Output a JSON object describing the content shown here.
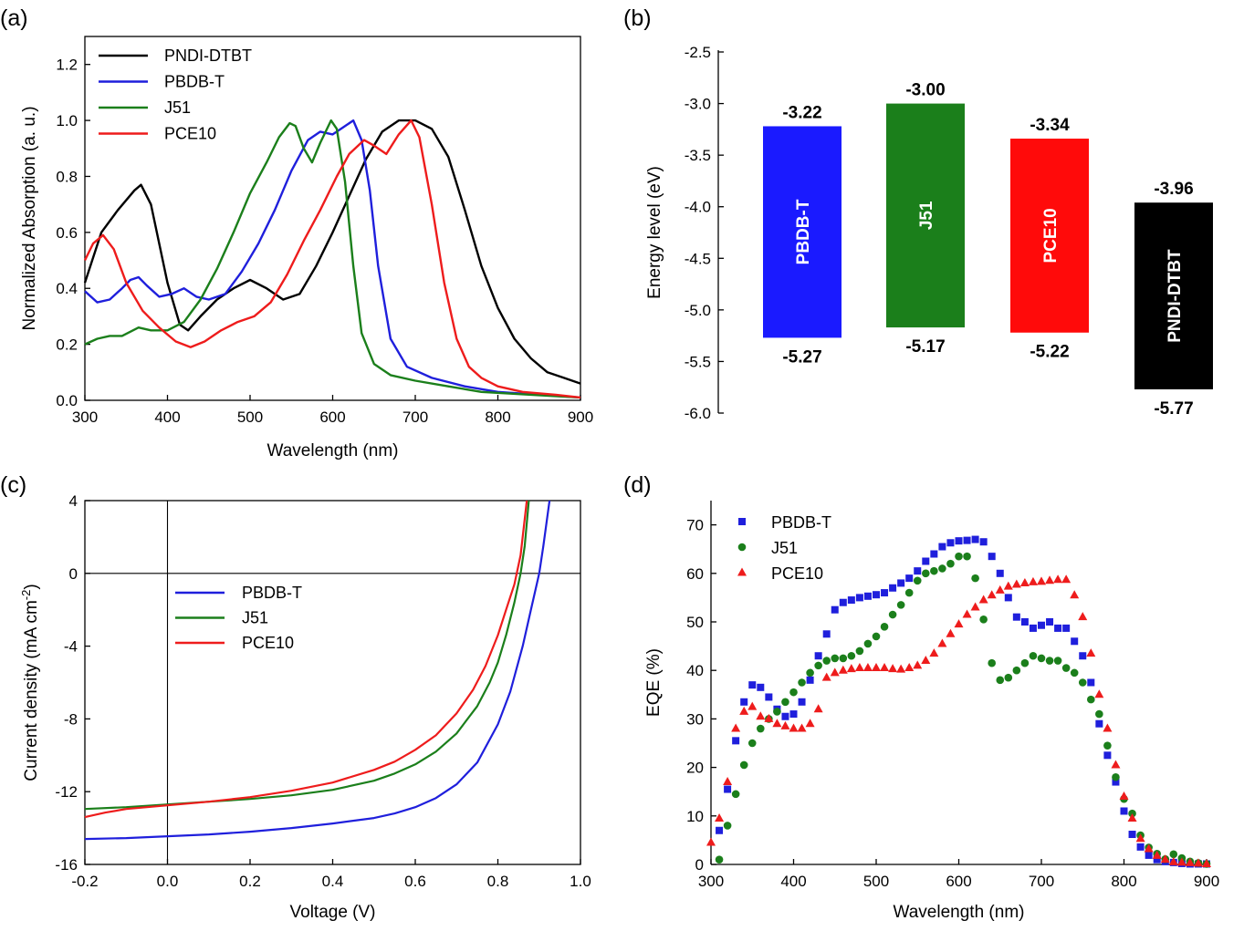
{
  "chart_data": [
    {
      "panel": "(a)",
      "type": "line",
      "xlabel": "Wavelength (nm)",
      "ylabel": "Normalized Absorption (a. u.)",
      "xlim": [
        300,
        900
      ],
      "ylim": [
        0,
        1.3
      ],
      "xticks": [
        "300",
        "400",
        "500",
        "600",
        "700",
        "800",
        "900"
      ],
      "yticks": [
        "0.0",
        "0.2",
        "0.4",
        "0.6",
        "0.8",
        "1.0",
        "1.2"
      ],
      "legend": "top-left",
      "series": [
        {
          "name": "PNDI-DTBT",
          "color": "#000000",
          "x": [
            300,
            320,
            340,
            360,
            368,
            380,
            400,
            415,
            425,
            440,
            460,
            480,
            500,
            520,
            540,
            560,
            580,
            600,
            620,
            640,
            660,
            680,
            690,
            700,
            720,
            740,
            760,
            780,
            800,
            820,
            840,
            860,
            880,
            900
          ],
          "y": [
            0.42,
            0.6,
            0.68,
            0.75,
            0.77,
            0.7,
            0.42,
            0.27,
            0.25,
            0.3,
            0.36,
            0.4,
            0.43,
            0.4,
            0.36,
            0.38,
            0.48,
            0.6,
            0.73,
            0.86,
            0.96,
            1.0,
            1.0,
            1.0,
            0.97,
            0.87,
            0.68,
            0.48,
            0.33,
            0.22,
            0.15,
            0.1,
            0.08,
            0.06
          ]
        },
        {
          "name": "PBDB-T",
          "color": "#1f1fdc",
          "x": [
            300,
            315,
            330,
            345,
            355,
            365,
            375,
            390,
            405,
            420,
            435,
            450,
            470,
            490,
            510,
            530,
            550,
            570,
            585,
            600,
            610,
            625,
            635,
            645,
            655,
            670,
            690,
            720,
            760,
            800,
            850,
            900
          ],
          "y": [
            0.39,
            0.35,
            0.36,
            0.4,
            0.43,
            0.44,
            0.41,
            0.37,
            0.38,
            0.4,
            0.37,
            0.36,
            0.38,
            0.46,
            0.56,
            0.68,
            0.82,
            0.93,
            0.96,
            0.95,
            0.97,
            1.0,
            0.93,
            0.75,
            0.48,
            0.22,
            0.12,
            0.08,
            0.05,
            0.03,
            0.02,
            0.01
          ]
        },
        {
          "name": "J51",
          "color": "#1b7f1b",
          "x": [
            300,
            315,
            330,
            345,
            365,
            380,
            400,
            420,
            440,
            460,
            480,
            500,
            520,
            535,
            548,
            555,
            565,
            575,
            585,
            598,
            605,
            615,
            625,
            635,
            650,
            670,
            700,
            740,
            780,
            840,
            900
          ],
          "y": [
            0.2,
            0.22,
            0.23,
            0.23,
            0.26,
            0.25,
            0.25,
            0.28,
            0.36,
            0.47,
            0.6,
            0.74,
            0.85,
            0.94,
            0.99,
            0.98,
            0.9,
            0.85,
            0.92,
            1.0,
            0.97,
            0.78,
            0.48,
            0.24,
            0.13,
            0.09,
            0.07,
            0.05,
            0.03,
            0.02,
            0.01
          ]
        },
        {
          "name": "PCE10",
          "color": "#ee1c1c",
          "x": [
            300,
            310,
            322,
            335,
            350,
            370,
            390,
            410,
            428,
            445,
            465,
            485,
            505,
            525,
            545,
            565,
            585,
            605,
            620,
            638,
            650,
            665,
            680,
            695,
            705,
            720,
            735,
            750,
            765,
            780,
            800,
            830,
            870,
            900
          ],
          "y": [
            0.5,
            0.56,
            0.59,
            0.54,
            0.42,
            0.32,
            0.26,
            0.21,
            0.19,
            0.21,
            0.25,
            0.28,
            0.3,
            0.35,
            0.45,
            0.57,
            0.68,
            0.8,
            0.88,
            0.93,
            0.91,
            0.88,
            0.95,
            1.0,
            0.94,
            0.7,
            0.42,
            0.22,
            0.12,
            0.08,
            0.05,
            0.03,
            0.02,
            0.01
          ]
        }
      ]
    },
    {
      "panel": "(b)",
      "type": "bar",
      "ylabel": "Energy level (eV)",
      "ylim": [
        -6.0,
        -2.5
      ],
      "yticks": [
        "-2.5",
        "-3.0",
        "-3.5",
        "-4.0",
        "-4.5",
        "-5.0",
        "-5.5",
        "-6.0"
      ],
      "categories": [
        "PBDB-T",
        "J51",
        "PCE10",
        "PNDI-DTBT"
      ],
      "lumo": [
        -3.22,
        -3.0,
        -3.34,
        -3.96
      ],
      "homo": [
        -5.27,
        -5.17,
        -5.22,
        -5.77
      ],
      "lumo_labels": [
        "-3.22",
        "-3.00",
        "-3.34",
        "-3.96"
      ],
      "homo_labels": [
        "-5.27",
        "-5.17",
        "-5.22",
        "-5.77"
      ],
      "colors": [
        "#1a1aff",
        "#1b7f1b",
        "#ff0a0a",
        "#000000"
      ]
    },
    {
      "panel": "(c)",
      "type": "line",
      "xlabel": "Voltage (V)",
      "ylabel_main": "Current density (mA cm",
      "ylabel_sup": "-2",
      "ylabel_end": ")",
      "xlim": [
        -0.2,
        1.0
      ],
      "ylim": [
        -16,
        4
      ],
      "xticks": [
        "-0.2",
        "0.0",
        "0.2",
        "0.4",
        "0.6",
        "0.8",
        "1.0"
      ],
      "yticks": [
        "4",
        "0",
        "-4",
        "-8",
        "-12",
        "-16"
      ],
      "legend": "center-left",
      "series": [
        {
          "name": "PBDB-T",
          "color": "#1f1fdc",
          "x": [
            -0.2,
            -0.1,
            0.0,
            0.1,
            0.2,
            0.3,
            0.4,
            0.5,
            0.55,
            0.6,
            0.65,
            0.7,
            0.75,
            0.8,
            0.83,
            0.86,
            0.88,
            0.9,
            0.91,
            0.925
          ],
          "y": [
            -14.6,
            -14.55,
            -14.45,
            -14.35,
            -14.2,
            -14.0,
            -13.75,
            -13.45,
            -13.2,
            -12.85,
            -12.35,
            -11.6,
            -10.4,
            -8.3,
            -6.5,
            -4.0,
            -2.0,
            0.0,
            1.5,
            4.0
          ]
        },
        {
          "name": "J51",
          "color": "#1b7f1b",
          "x": [
            -0.2,
            -0.1,
            0.0,
            0.1,
            0.2,
            0.3,
            0.4,
            0.5,
            0.55,
            0.6,
            0.65,
            0.7,
            0.75,
            0.78,
            0.8,
            0.82,
            0.84,
            0.855,
            0.865,
            0.875
          ],
          "y": [
            -12.95,
            -12.85,
            -12.7,
            -12.55,
            -12.4,
            -12.2,
            -11.9,
            -11.4,
            -11.0,
            -10.5,
            -9.8,
            -8.8,
            -7.3,
            -6.0,
            -4.9,
            -3.4,
            -1.6,
            0.0,
            1.5,
            4.0
          ]
        },
        {
          "name": "PCE10",
          "color": "#ee1c1c",
          "x": [
            -0.2,
            -0.15,
            -0.1,
            0.0,
            0.1,
            0.2,
            0.3,
            0.4,
            0.5,
            0.55,
            0.6,
            0.65,
            0.7,
            0.74,
            0.77,
            0.8,
            0.82,
            0.84,
            0.855,
            0.87
          ],
          "y": [
            -13.4,
            -13.15,
            -12.95,
            -12.75,
            -12.55,
            -12.3,
            -11.95,
            -11.5,
            -10.8,
            -10.35,
            -9.7,
            -8.9,
            -7.7,
            -6.4,
            -5.1,
            -3.4,
            -2.0,
            -0.6,
            1.0,
            4.0
          ]
        }
      ]
    },
    {
      "panel": "(d)",
      "type": "scatter",
      "xlabel": "Wavelength (nm)",
      "ylabel": "EQE (%)",
      "xlim": [
        300,
        900
      ],
      "ylim": [
        0,
        75
      ],
      "xticks": [
        "300",
        "400",
        "500",
        "600",
        "700",
        "800",
        "900"
      ],
      "yticks": [
        "0",
        "10",
        "20",
        "30",
        "40",
        "50",
        "60",
        "70"
      ],
      "legend": "top-left",
      "x": [
        300,
        310,
        320,
        330,
        340,
        350,
        360,
        370,
        380,
        390,
        400,
        410,
        420,
        430,
        440,
        450,
        460,
        470,
        480,
        490,
        500,
        510,
        520,
        530,
        540,
        550,
        560,
        570,
        580,
        590,
        600,
        610,
        620,
        630,
        640,
        650,
        660,
        670,
        680,
        690,
        700,
        710,
        720,
        730,
        740,
        750,
        760,
        770,
        780,
        790,
        800,
        810,
        820,
        830,
        840,
        850,
        860,
        870,
        880,
        890,
        900
      ],
      "series": [
        {
          "name": "PBDB-T",
          "color": "#1f1fdc",
          "marker": "square",
          "y": [
            null,
            7,
            15.5,
            25.5,
            33.5,
            37,
            36.5,
            34.5,
            32,
            30.5,
            31,
            33.5,
            38,
            43,
            47.5,
            52.5,
            54,
            54.5,
            55,
            55.3,
            55.6,
            56,
            57,
            58,
            59,
            60.5,
            62.5,
            64,
            65.5,
            66.3,
            66.7,
            66.8,
            67,
            66.5,
            63.5,
            60,
            55,
            51,
            50,
            48.7,
            49.3,
            50,
            48.7,
            48.7,
            46,
            43,
            37.5,
            29,
            22.5,
            17,
            11,
            6.2,
            3.6,
            1.9,
            1.0,
            0.6,
            0.4,
            0.2,
            0.1,
            0.1,
            0.1
          ]
        },
        {
          "name": "J51",
          "color": "#1b7f1b",
          "marker": "circle",
          "y": [
            null,
            1,
            8,
            14.5,
            20.5,
            25,
            28,
            30,
            31.5,
            33.5,
            35.5,
            37.5,
            39.5,
            41,
            42,
            42.5,
            42.5,
            43,
            44,
            45.5,
            47,
            49,
            51.5,
            53.5,
            56,
            58.5,
            60,
            60.5,
            61,
            62,
            63.5,
            63.5,
            59,
            50.5,
            41.5,
            38,
            38.5,
            40,
            41.5,
            43,
            42.5,
            42,
            42,
            40.5,
            39.5,
            37.5,
            34,
            31,
            24.5,
            18,
            13.5,
            10.5,
            6.0,
            3.5,
            2.2,
            1.1,
            2.1,
            1.3,
            0.6,
            0.3,
            0.1
          ]
        },
        {
          "name": "PCE10",
          "color": "#ee1c1c",
          "marker": "triangle",
          "y": [
            4.5,
            9.5,
            17,
            28,
            31.5,
            32.5,
            30.5,
            30,
            29,
            28.5,
            28,
            28,
            29,
            32,
            38.5,
            39.5,
            40,
            40.3,
            40.5,
            40.5,
            40.5,
            40.5,
            40.3,
            40.2,
            40.5,
            41,
            42,
            43.5,
            45.5,
            47.5,
            49.5,
            51.5,
            53,
            54.5,
            55.5,
            56.5,
            57.3,
            57.7,
            58,
            58.2,
            58.3,
            58.5,
            58.7,
            58.7,
            55.5,
            51,
            43.5,
            35,
            28,
            20.5,
            14,
            9.5,
            5.3,
            3.2,
            1.8,
            1.0,
            0.5,
            0.4,
            0.3,
            0.2,
            0.1
          ]
        }
      ]
    }
  ]
}
